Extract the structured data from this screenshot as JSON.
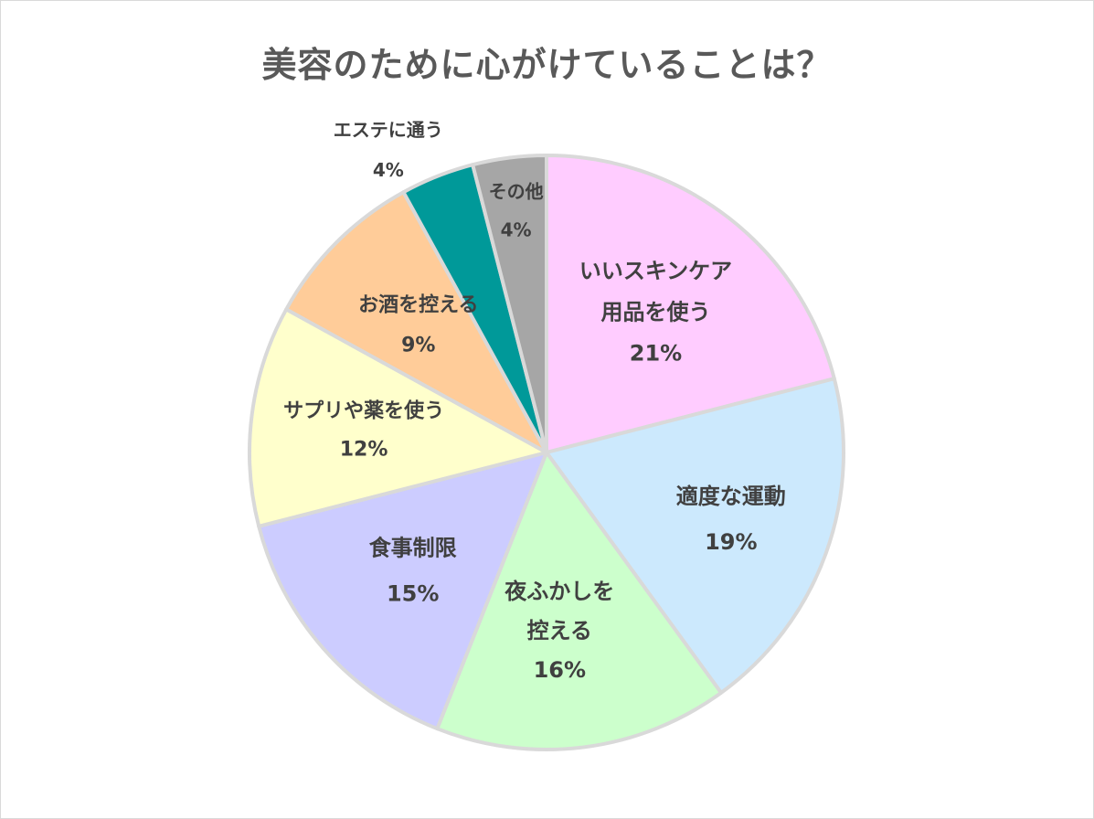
{
  "chart_data": {
    "type": "pie",
    "title": "美容のために心がけていることは？",
    "slices": [
      {
        "label_lines": [
          "いいスキンケア",
          "用品を使う"
        ],
        "value": 21,
        "value_label": "21%",
        "color": "#ffccff"
      },
      {
        "label_lines": [
          "適度な運動"
        ],
        "value": 19,
        "value_label": "19%",
        "color": "#cce9fd"
      },
      {
        "label_lines": [
          "夜ふかしを",
          "控える"
        ],
        "value": 16,
        "value_label": "16%",
        "color": "#ccffcc"
      },
      {
        "label_lines": [
          "食事制限"
        ],
        "value": 15,
        "value_label": "15%",
        "color": "#ccccff"
      },
      {
        "label_lines": [
          "サプリや薬を使う"
        ],
        "value": 12,
        "value_label": "12%",
        "color": "#ffffcc"
      },
      {
        "label_lines": [
          "お酒を控える"
        ],
        "value": 9,
        "value_label": "9%",
        "color": "#ffcc99"
      },
      {
        "label_lines": [
          "エステに通う"
        ],
        "value": 4,
        "value_label": "4%",
        "color": "#009999"
      },
      {
        "label_lines": [
          "その他"
        ],
        "value": 4,
        "value_label": "4%",
        "color": "#a6a6a6"
      }
    ],
    "start": "12 o'clock",
    "direction": "clockwise",
    "legend": "none",
    "slice_border_color": "#d9d9d9"
  }
}
